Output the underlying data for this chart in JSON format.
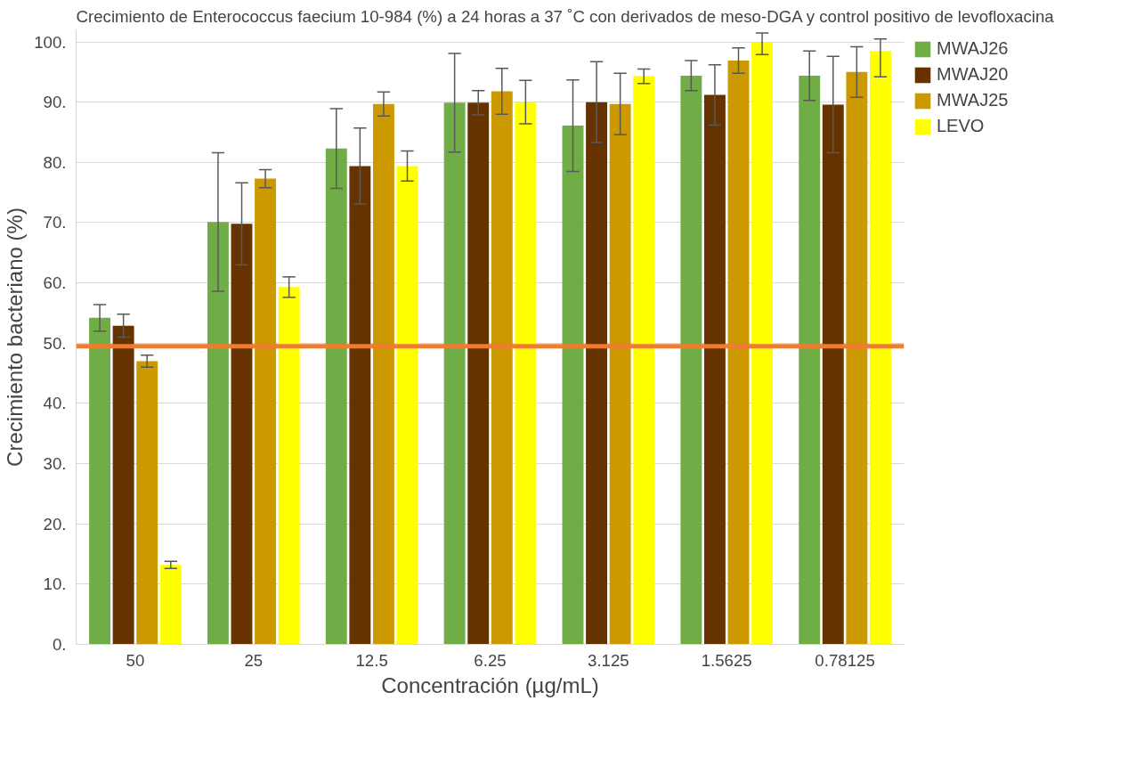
{
  "chart_data": {
    "type": "bar",
    "title": "Crecimiento de Enterococcus faecium 10-984 (%) a 24 horas a 37 ˚C con derivados de meso-DGA y control positivo de levofloxacina",
    "xlabel": "Concentración (µg/mL)",
    "ylabel": "Crecimiento bacteriano (%)",
    "categories": [
      "50",
      "25",
      "12.5",
      "6.25",
      "3.125",
      "1.5625",
      "0.78125"
    ],
    "series": [
      {
        "name": "MWAJ26",
        "color": "#70ad47",
        "values": [
          54.2,
          70.1,
          82.3,
          89.9,
          86.1,
          94.4,
          94.4
        ],
        "errors": [
          2.2,
          11.5,
          6.6,
          8.2,
          7.6,
          2.5,
          4.1
        ]
      },
      {
        "name": "MWAJ20",
        "color": "#663300",
        "values": [
          52.9,
          69.8,
          79.4,
          89.9,
          90.0,
          91.2,
          89.6
        ],
        "errors": [
          1.9,
          6.8,
          6.3,
          2.0,
          6.7,
          5.0,
          8.0
        ]
      },
      {
        "name": "MWAJ25",
        "color": "#cc9900",
        "values": [
          47.0,
          77.3,
          89.7,
          91.8,
          89.7,
          96.9,
          95.0
        ],
        "errors": [
          1.0,
          1.5,
          2.0,
          3.8,
          5.1,
          2.1,
          4.2
        ]
      },
      {
        "name": "LEVO",
        "color": "#ffff00",
        "values": [
          13.2,
          59.3,
          79.4,
          90.0,
          94.3,
          99.9,
          98.5
        ],
        "errors": [
          0.6,
          1.7,
          2.5,
          3.6,
          1.2,
          [
            97.9,
            101.5
          ],
          [
            94.2,
            100.5
          ]
        ]
      }
    ],
    "ylim": [
      0,
      102
    ],
    "yticks": [
      {
        "value": 0,
        "label": "0."
      },
      {
        "value": 10,
        "label": "10."
      },
      {
        "value": 20,
        "label": "20."
      },
      {
        "value": 30,
        "label": "30."
      },
      {
        "value": 40,
        "label": "40."
      },
      {
        "value": 50,
        "label": "50."
      },
      {
        "value": 60,
        "label": "60."
      },
      {
        "value": 70,
        "label": "70."
      },
      {
        "value": 80,
        "label": "80."
      },
      {
        "value": 90,
        "label": "90."
      },
      {
        "value": 100,
        "label": "100."
      }
    ],
    "ref_lines": [
      {
        "axis": "y",
        "value": 49.5,
        "label": null,
        "color": "#ed7d31"
      }
    ],
    "grid": "y",
    "legend": "right"
  }
}
